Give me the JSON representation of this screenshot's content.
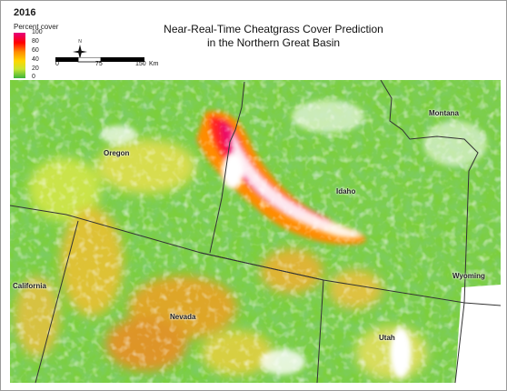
{
  "year": "2016",
  "legend": {
    "title": "Percent cover",
    "ticks": [
      "100",
      "80",
      "60",
      "40",
      "20",
      "0"
    ]
  },
  "title_line1": "Near-Real-Time Cheatgrass Cover Prediction",
  "title_line2": "in the Northern Great Basin",
  "scale": {
    "labels": [
      "0",
      "75",
      "150"
    ],
    "unit": "Km"
  },
  "north_arrow_label": "N",
  "states": {
    "oregon": "Oregon",
    "idaho": "Idaho",
    "montana": "Montana",
    "wyoming": "Wyoming",
    "california": "California",
    "nevada": "Nevada",
    "utah": "Utah"
  },
  "colors": {
    "high": "#e6007e",
    "red": "#ff0000",
    "orange": "#ff8c00",
    "yellow": "#ffd700",
    "lightgreen": "#c8e632",
    "green": "#3cb43c"
  }
}
